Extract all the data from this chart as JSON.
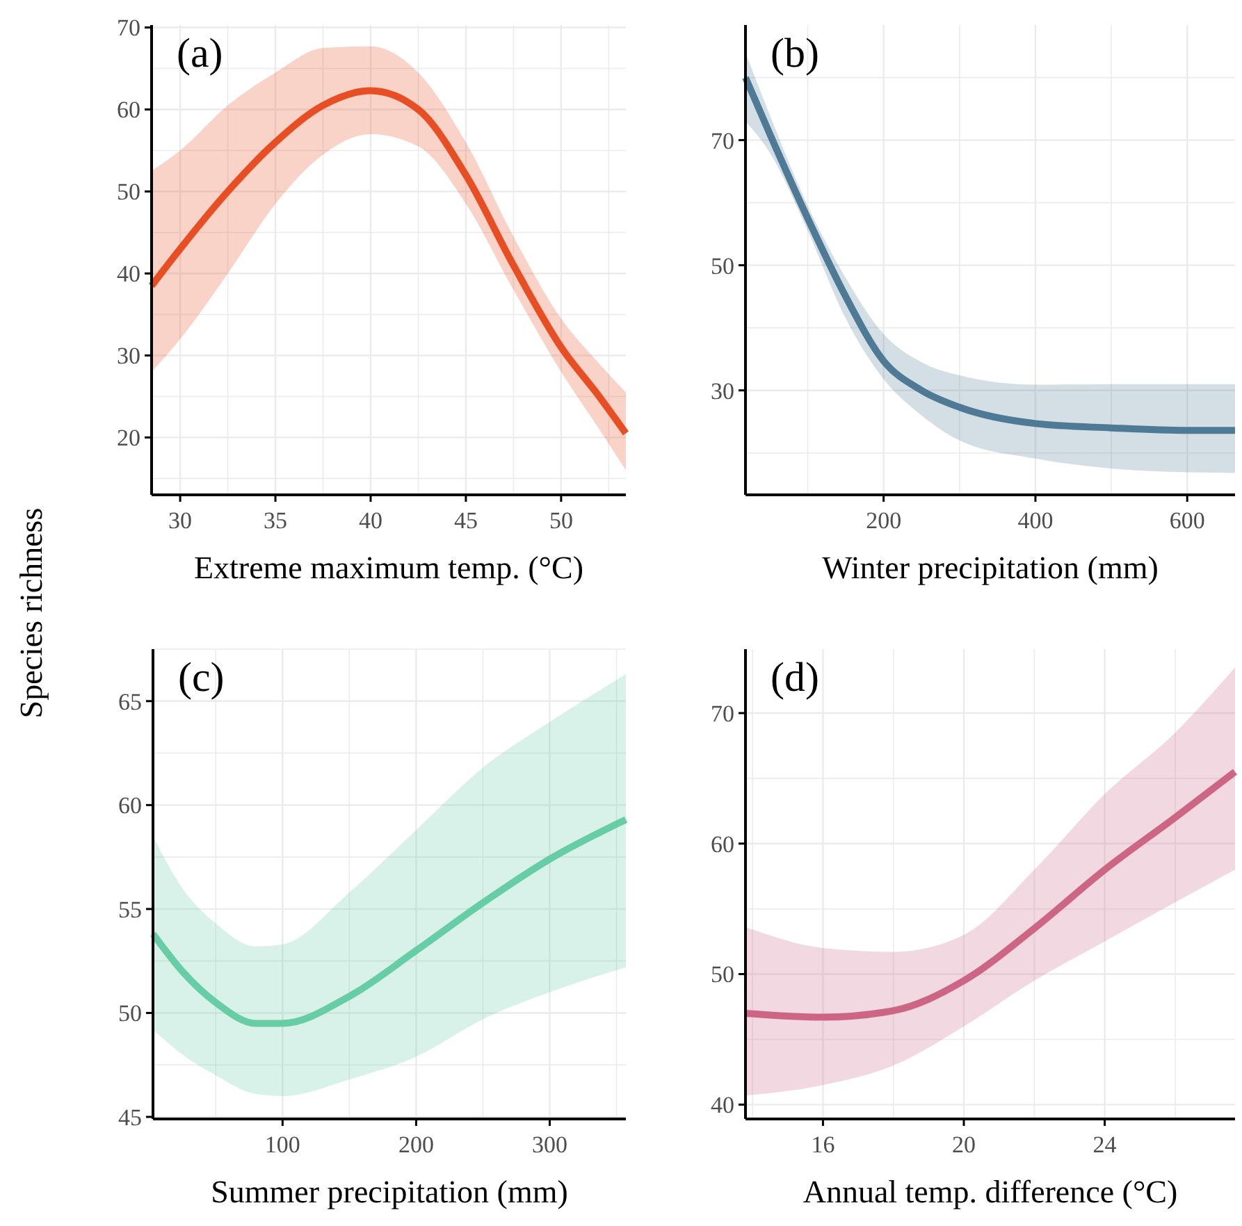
{
  "chart_data": [
    {
      "type": "line",
      "ylabel": "Species richness",
      "xlabel": "Extreme maximum temp. (°C)",
      "annotations": [
        "(a)"
      ],
      "grid": true,
      "xlim": [
        28.5,
        53.4
      ],
      "xticks": [
        30,
        35,
        40,
        45,
        50
      ],
      "ylim": [
        13,
        70.3
      ],
      "yticks": [
        20,
        30,
        40,
        50,
        60,
        70
      ],
      "x": [
        28.5,
        30,
        32.5,
        35,
        37.5,
        40,
        42.5,
        45,
        47.5,
        50,
        52,
        53.4
      ],
      "series": [
        {
          "color": "#e84e24",
          "values": [
            38.5,
            43,
            50,
            56,
            60.5,
            62.3,
            60,
            52,
            41,
            31,
            25,
            20.5
          ],
          "lower": [
            28,
            32,
            40,
            48.5,
            54.5,
            57,
            55.5,
            48.5,
            38,
            28,
            21,
            16
          ],
          "upper": [
            52.5,
            55,
            60.5,
            64.5,
            67.5,
            67.7,
            64.5,
            56,
            44.5,
            34.5,
            29,
            25.5
          ]
        }
      ]
    },
    {
      "type": "line",
      "xlabel": "Winter precipitation (mm)",
      "annotations": [
        "(b)"
      ],
      "grid": true,
      "xlim": [
        18,
        663
      ],
      "xticks": [
        200,
        400,
        600
      ],
      "ylim": [
        13.3,
        88.4
      ],
      "yticks": [
        30,
        50,
        70
      ],
      "x": [
        18,
        50,
        100,
        150,
        200,
        250,
        300,
        400,
        500,
        600,
        663
      ],
      "series": [
        {
          "color": "#4f7a96",
          "values": [
            80,
            71,
            57.5,
            45,
            34.7,
            30,
            27.3,
            24.7,
            24,
            23.6,
            23.6
          ],
          "lower": [
            73,
            68,
            55.5,
            41.5,
            31.8,
            26,
            22,
            19.1,
            17.5,
            16.9,
            16.8
          ],
          "upper": [
            84,
            74,
            59.5,
            48,
            39,
            34.5,
            32.4,
            30.9,
            31,
            31,
            31
          ]
        }
      ]
    },
    {
      "type": "line",
      "xlabel": "Summer precipitation (mm)",
      "annotations": [
        "(c)"
      ],
      "grid": true,
      "xlim": [
        3,
        357
      ],
      "xticks": [
        100,
        200,
        300
      ],
      "ylim": [
        44.9,
        67.5
      ],
      "yticks": [
        45,
        50,
        55,
        60,
        65
      ],
      "x": [
        3,
        25,
        50,
        80,
        100,
        150,
        200,
        250,
        300,
        357
      ],
      "series": [
        {
          "color": "#66cda6",
          "values": [
            53.8,
            52,
            50.5,
            49.5,
            49.5,
            50.8,
            53,
            55.3,
            57.4,
            59.3
          ],
          "lower": [
            49.2,
            48,
            47,
            46.1,
            46,
            46.8,
            47.9,
            49.7,
            51,
            52.2
          ],
          "upper": [
            58.5,
            56,
            54.3,
            53.2,
            53.3,
            55.8,
            58.8,
            61.8,
            64,
            66.3
          ]
        }
      ]
    },
    {
      "type": "line",
      "xlabel": "Annual temp. difference (°C)",
      "annotations": [
        "(d)"
      ],
      "grid": true,
      "xlim": [
        13.8,
        27.7
      ],
      "xticks": [
        16,
        20,
        24
      ],
      "ylim": [
        38.9,
        74.9
      ],
      "yticks": [
        40,
        50,
        60,
        70
      ],
      "x": [
        13.8,
        16,
        18,
        20,
        22,
        24,
        26,
        27.7
      ],
      "series": [
        {
          "color": "#cd6585",
          "values": [
            47,
            46.7,
            47.2,
            49.5,
            53.5,
            58,
            62,
            65.5
          ],
          "lower": [
            40.7,
            41.5,
            43,
            46,
            49.5,
            52.5,
            55.5,
            58
          ],
          "upper": [
            53.6,
            52,
            51.7,
            53,
            58,
            63.8,
            68.5,
            73.5
          ]
        }
      ]
    }
  ]
}
